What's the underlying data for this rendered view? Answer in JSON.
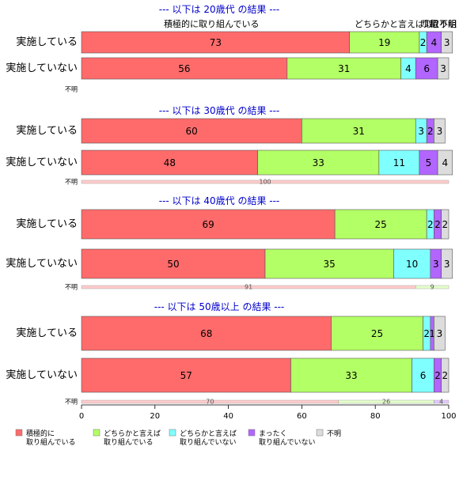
{
  "chart_data": {
    "type": "bar",
    "orientation": "horizontal",
    "stacked": true,
    "xlim": [
      0,
      100
    ],
    "x_ticks": [
      0,
      20,
      40,
      60,
      80,
      100
    ],
    "grid": false,
    "legend_position": "bottom",
    "categories": [
      "積極的に取り組んでいる",
      "どちらかと言えば取り組んでいる",
      "どちらかと言えば取り組んでいない",
      "まったく取り組んでいない",
      "不明"
    ],
    "legend_labels": [
      [
        "積極的に",
        "取り組んでいる"
      ],
      [
        "どちらかと言えば",
        "取り組んでいる"
      ],
      [
        "どちらかと言えば",
        "取り組んでいない"
      ],
      [
        "まったく",
        "取り組んでいない"
      ],
      [
        "不明"
      ]
    ],
    "colors": [
      "#ff6b6b",
      "#b3ff66",
      "#80ffff",
      "#b266ff",
      "#dcdcdc"
    ],
    "top_labels": [
      "積極的に取り組んでいる",
      "どちらかと言えば取",
      "り組",
      "取り組",
      "不明"
    ],
    "unknown_row_label": "不明",
    "sections": [
      {
        "title": "--- 以下は 20歳代 の結果 ---",
        "rows": [
          {
            "label": "実施している",
            "values": [
              73,
              19,
              2,
              4,
              3
            ]
          },
          {
            "label": "実施していない",
            "values": [
              56,
              31,
              4,
              6,
              3
            ]
          }
        ],
        "unknown_values": []
      },
      {
        "title": "--- 以下は 30歳代 の結果 ---",
        "rows": [
          {
            "label": "実施している",
            "values": [
              60,
              31,
              3,
              2,
              3
            ]
          },
          {
            "label": "実施していない",
            "values": [
              48,
              33,
              11,
              5,
              4
            ]
          }
        ],
        "unknown_values": [
          100,
          0,
          0,
          0,
          0
        ]
      },
      {
        "title": "--- 以下は 40歳代 の結果 ---",
        "rows": [
          {
            "label": "実施している",
            "values": [
              69,
              25,
              2,
              2,
              2
            ]
          },
          {
            "label": "実施していない",
            "values": [
              50,
              35,
              10,
              3,
              3
            ]
          }
        ],
        "unknown_values": [
          91,
          9,
          0,
          0,
          0
        ]
      },
      {
        "title": "--- 以下は 50歳以上 の結果 ---",
        "rows": [
          {
            "label": "実施している",
            "values": [
              68,
              25,
              2,
              1,
              3
            ]
          },
          {
            "label": "実施していない",
            "values": [
              57,
              33,
              6,
              2,
              2
            ]
          }
        ],
        "unknown_values": [
          70,
          26,
          0,
          4,
          0
        ]
      }
    ]
  }
}
